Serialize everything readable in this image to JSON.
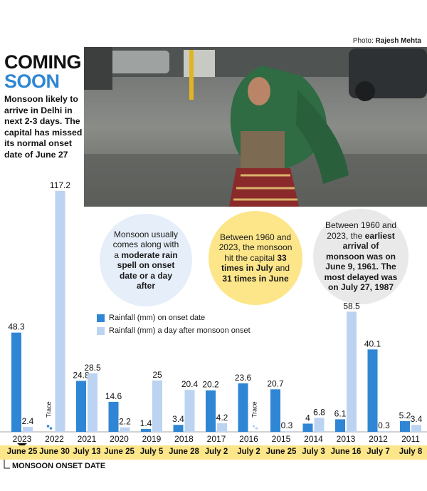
{
  "credit": {
    "prefix": "Photo:",
    "name": "Rajesh Mehta"
  },
  "title_line1": "COMING",
  "title_line2": "SOON",
  "lede": "Monsoon likely to arrive in Delhi in next 2-3 days. The capital has missed its normal onset date of June 27",
  "bubbles": [
    {
      "parts": [
        "Monsoon usually comes along with a ",
        "moderate rain spell on onset date or a day after",
        ""
      ]
    },
    {
      "parts": [
        "Between 1960 and 2023, the monsoon hit the capital ",
        "33 times in July",
        " and ",
        "31 times in June"
      ]
    },
    {
      "parts": [
        "Between 1960 and 2023, the ",
        "earliest arrival of monsoon was on June 9, 1961. The most delayed was on July 27, 1987"
      ]
    }
  ],
  "onset_label": "MONSOON ONSET DATE",
  "colors": {
    "onset": "#2f86d4",
    "after": "#bcd3f2",
    "accent": "#fde68a"
  },
  "chart_data": {
    "type": "bar",
    "categories": [
      "2023",
      "2022",
      "2021",
      "2020",
      "2019",
      "2018",
      "2017",
      "2016",
      "2015",
      "2014",
      "2013",
      "2012",
      "2011"
    ],
    "onset_dates": [
      "June 25",
      "June 30",
      "July 13",
      "June 25",
      "July 5",
      "June 28",
      "July 2",
      "July 2",
      "June 25",
      "July 3",
      "June 16",
      "July 7",
      "July 8"
    ],
    "series": [
      {
        "name": "Rainfall (mm) on onset date",
        "values": [
          48.3,
          null,
          24.8,
          14.6,
          1.4,
          3.4,
          20.2,
          23.6,
          20.7,
          4,
          6.1,
          40.1,
          5.2
        ],
        "labels": [
          "48.3",
          "Trace",
          "24.8",
          "14.6",
          "1.4",
          "3.4",
          "20.2",
          "23.6",
          "20.7",
          "4",
          "6.1",
          "40.1",
          "5.2"
        ]
      },
      {
        "name": "Rainfall (mm) a day after monsoon onset",
        "values": [
          2.4,
          117.2,
          28.5,
          2.2,
          25,
          20.4,
          4.2,
          null,
          0.3,
          6.8,
          58.5,
          0.3,
          3.4
        ],
        "labels": [
          "2.4",
          "117.2",
          "28.5",
          "2.2",
          "25",
          "20.4",
          "4.2",
          "Trace",
          "0.3",
          "6.8",
          "58.5",
          "0.3",
          "3.4"
        ]
      }
    ],
    "ylim": [
      0,
      117.2
    ],
    "legend": "top-left"
  }
}
